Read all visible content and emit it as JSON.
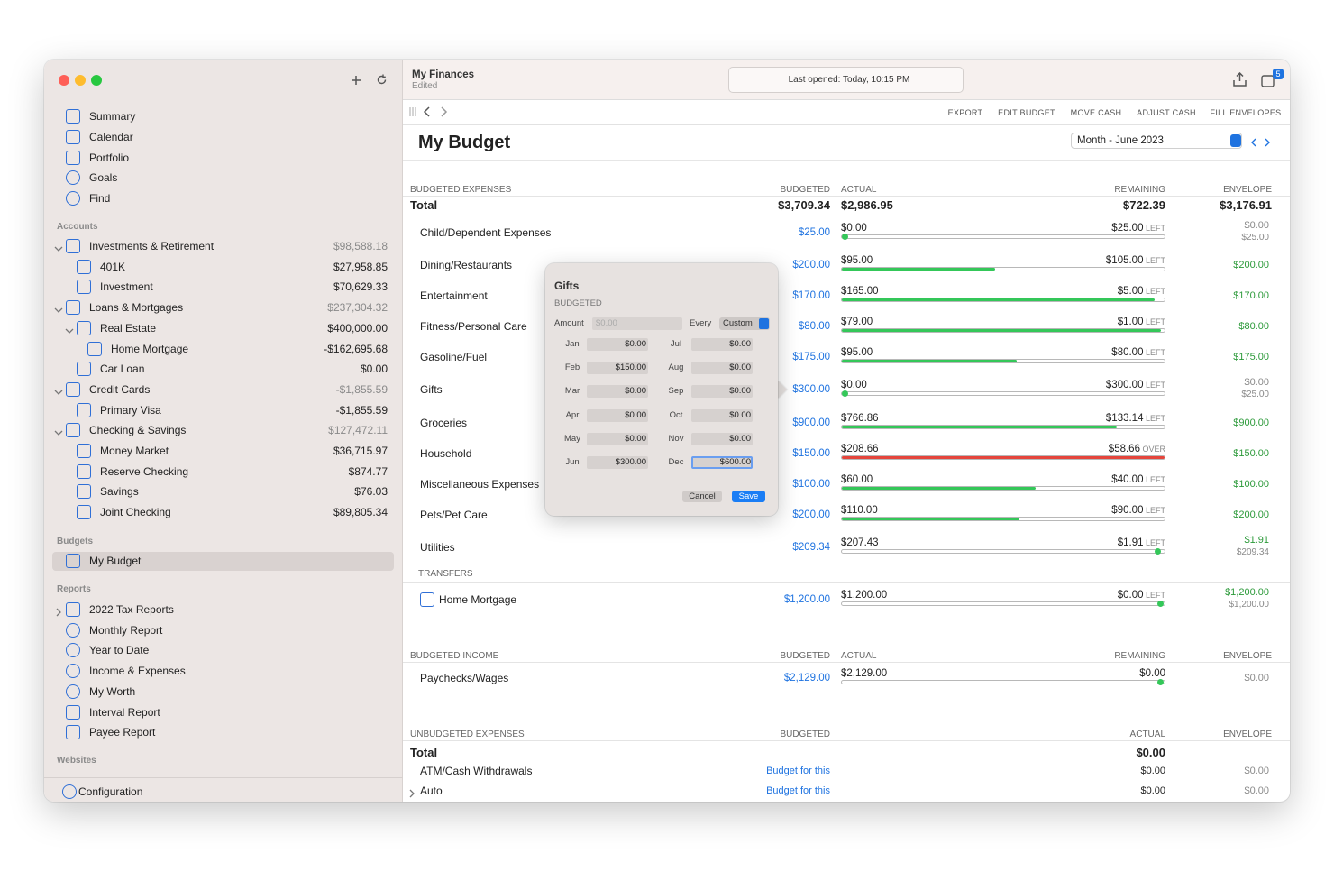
{
  "titlebar": {
    "title": "My Finances",
    "subtitle": "Edited",
    "status": "Last opened: Today, 10:15 PM",
    "badge": "5"
  },
  "sidebar": {
    "nav": [
      "Summary",
      "Calendar",
      "Portfolio",
      "Goals",
      "Find"
    ],
    "accounts_title": "Accounts",
    "accounts": [
      {
        "name": "Investments & Retirement",
        "balance": "$98,588.18"
      },
      {
        "name": "401K",
        "balance": "$27,958.85"
      },
      {
        "name": "Investment",
        "balance": "$70,629.33"
      },
      {
        "name": "Loans & Mortgages",
        "balance": "$237,304.32"
      },
      {
        "name": "Real Estate",
        "balance": "$400,000.00"
      },
      {
        "name": "Home Mortgage",
        "balance": "-$162,695.68"
      },
      {
        "name": "Car Loan",
        "balance": "$0.00"
      },
      {
        "name": "Credit Cards",
        "balance": "-$1,855.59"
      },
      {
        "name": "Primary Visa",
        "balance": "-$1,855.59"
      },
      {
        "name": "Checking & Savings",
        "balance": "$127,472.11"
      },
      {
        "name": "Money Market",
        "balance": "$36,715.97"
      },
      {
        "name": "Reserve Checking",
        "balance": "$874.77"
      },
      {
        "name": "Savings",
        "balance": "$76.03"
      },
      {
        "name": "Joint Checking",
        "balance": "$89,805.34"
      }
    ],
    "budgets_title": "Budgets",
    "budgets": [
      "My Budget"
    ],
    "reports_title": "Reports",
    "reports": [
      "2022 Tax Reports",
      "Monthly Report",
      "Year to Date",
      "Income & Expenses",
      "My Worth",
      "Interval Report",
      "Payee Report"
    ],
    "websites_title": "Websites",
    "configuration": "Configuration"
  },
  "toolbar": {
    "buttons": [
      "EXPORT",
      "EDIT BUDGET",
      "MOVE CASH",
      "ADJUST CASH",
      "FILL ENVELOPES"
    ]
  },
  "page": {
    "title": "My Budget",
    "period": "Month - June 2023"
  },
  "expenses": {
    "header": [
      "BUDGETED EXPENSES",
      "BUDGETED",
      "ACTUAL",
      "REMAINING",
      "ENVELOPE"
    ],
    "total": {
      "label": "Total",
      "budgeted": "$3,709.34",
      "actual": "$2,986.95",
      "remaining": "$722.39",
      "envelope": "$3,176.91"
    },
    "rows": [
      {
        "name": "Child/Dependent Expenses",
        "budgeted": "$25.00",
        "actual": "$0.00",
        "remaining": "$25.00",
        "status": "LEFT",
        "envelope": "$0.00",
        "envelope_note": "$25.00"
      },
      {
        "name": "Dining/Restaurants",
        "budgeted": "$200.00",
        "actual": "$95.00",
        "remaining": "$105.00",
        "status": "LEFT",
        "envelope": "$200.00"
      },
      {
        "name": "Entertainment",
        "budgeted": "$170.00",
        "actual": "$165.00",
        "remaining": "$5.00",
        "status": "LEFT",
        "envelope": "$170.00"
      },
      {
        "name": "Fitness/Personal Care",
        "budgeted": "$80.00",
        "actual": "$79.00",
        "remaining": "$1.00",
        "status": "LEFT",
        "envelope": "$80.00"
      },
      {
        "name": "Gasoline/Fuel",
        "budgeted": "$175.00",
        "actual": "$95.00",
        "remaining": "$80.00",
        "status": "LEFT",
        "envelope": "$175.00"
      },
      {
        "name": "Gifts",
        "budgeted": "$300.00",
        "actual": "$0.00",
        "remaining": "$300.00",
        "status": "LEFT",
        "envelope": "$0.00",
        "envelope_note": "$25.00"
      },
      {
        "name": "Groceries",
        "budgeted": "$900.00",
        "actual": "$766.86",
        "remaining": "$133.14",
        "status": "LEFT",
        "envelope": "$900.00"
      },
      {
        "name": "Household",
        "budgeted": "$150.00",
        "actual": "$208.66",
        "remaining": "$58.66",
        "status": "OVER",
        "envelope": "$150.00"
      },
      {
        "name": "Miscellaneous Expenses",
        "budgeted": "$100.00",
        "actual": "$60.00",
        "remaining": "$40.00",
        "status": "LEFT",
        "envelope": "$100.00"
      },
      {
        "name": "Pets/Pet Care",
        "budgeted": "$200.00",
        "actual": "$110.00",
        "remaining": "$90.00",
        "status": "LEFT",
        "envelope": "$200.00"
      },
      {
        "name": "Utilities",
        "budgeted": "$209.34",
        "actual": "$207.43",
        "remaining": "$1.91",
        "status": "LEFT",
        "envelope": "$1.91",
        "envelope_note": "$209.34"
      }
    ]
  },
  "transfers": {
    "title": "TRANSFERS",
    "rows": [
      {
        "name": "Home Mortgage",
        "budgeted": "$1,200.00",
        "actual": "$1,200.00",
        "remaining": "$0.00",
        "status": "LEFT",
        "envelope": "$1,200.00",
        "envelope_note": "$1,200.00"
      }
    ]
  },
  "income": {
    "header": [
      "BUDGETED INCOME",
      "BUDGETED",
      "ACTUAL",
      "REMAINING",
      "ENVELOPE"
    ],
    "rows": [
      {
        "name": "Paychecks/Wages",
        "budgeted": "$2,129.00",
        "actual": "$2,129.00",
        "remaining": "$0.00",
        "envelope": "$0.00"
      }
    ]
  },
  "unbudgeted": {
    "header": [
      "UNBUDGETED EXPENSES",
      "BUDGETED",
      "ACTUAL",
      "ENVELOPE"
    ],
    "total": {
      "label": "Total",
      "actual": "$0.00"
    },
    "rows": [
      {
        "name": "ATM/Cash Withdrawals",
        "budgeted": "Budget for this",
        "actual": "$0.00",
        "envelope": "$0.00"
      },
      {
        "name": "Auto",
        "budgeted": "Budget for this",
        "actual": "$0.00",
        "envelope": "$0.00"
      }
    ]
  },
  "popup": {
    "title": "Gifts",
    "subtitle": "BUDGETED",
    "amount_label": "Amount",
    "amount_placeholder": "$0.00",
    "every_label": "Every",
    "every_value": "Custom",
    "months": [
      {
        "label": "Jan",
        "value": "$0.00"
      },
      {
        "label": "Feb",
        "value": "$150.00"
      },
      {
        "label": "Mar",
        "value": "$0.00"
      },
      {
        "label": "Apr",
        "value": "$0.00"
      },
      {
        "label": "May",
        "value": "$0.00"
      },
      {
        "label": "Jun",
        "value": "$300.00"
      },
      {
        "label": "Jul",
        "value": "$0.00"
      },
      {
        "label": "Aug",
        "value": "$0.00"
      },
      {
        "label": "Sep",
        "value": "$0.00"
      },
      {
        "label": "Oct",
        "value": "$0.00"
      },
      {
        "label": "Nov",
        "value": "$0.00"
      },
      {
        "label": "Dec",
        "value": "$600.00"
      }
    ],
    "cancel": "Cancel",
    "save": "Save"
  }
}
